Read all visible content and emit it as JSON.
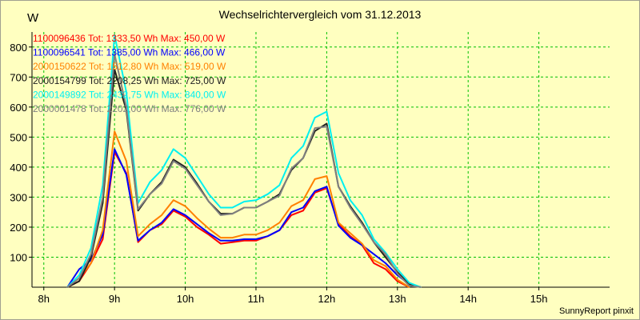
{
  "chart_data": {
    "type": "line",
    "title": "Wechselrichtervergleich vom 31.12.2013",
    "ylabel": "W",
    "credit": "SunnyReport pinxit",
    "xlim": [
      7.833,
      16
    ],
    "ylim": [
      0,
      850
    ],
    "grid": true,
    "legend_position": "top-left",
    "x_ticks": [
      8,
      9,
      10,
      11,
      12,
      13,
      14,
      15
    ],
    "x_tick_labels": [
      "8h",
      "9h",
      "10h",
      "11h",
      "12h",
      "13h",
      "14h",
      "15h"
    ],
    "y_ticks": [
      100,
      200,
      300,
      400,
      500,
      600,
      700,
      800
    ],
    "x": [
      8.0,
      8.167,
      8.333,
      8.5,
      8.667,
      8.833,
      9.0,
      9.167,
      9.333,
      9.5,
      9.667,
      9.833,
      10.0,
      10.167,
      10.333,
      10.5,
      10.667,
      10.833,
      11.0,
      11.167,
      11.333,
      11.5,
      11.667,
      11.833,
      12.0,
      12.167,
      12.333,
      12.5,
      12.667,
      12.833,
      13.0,
      13.167,
      13.333,
      13.5,
      13.667,
      13.833,
      14.0,
      14.167,
      14.333,
      14.5,
      14.667,
      14.833,
      15.0,
      15.167,
      15.333,
      15.5
    ],
    "series": [
      {
        "name": "1100096436 Tot: 1333,50 Wh Max: 450,00 W",
        "color": "#ff0000",
        "values": [
          null,
          null,
          0,
          20,
          80,
          160,
          450,
          380,
          150,
          190,
          210,
          255,
          235,
          200,
          175,
          145,
          150,
          155,
          155,
          170,
          190,
          240,
          255,
          315,
          330,
          210,
          170,
          140,
          80,
          60,
          20,
          0,
          null,
          null,
          null,
          null,
          null,
          null,
          null,
          null,
          null,
          null,
          null,
          null,
          null,
          null
        ]
      },
      {
        "name": "1100096541 Tot: 1385,00 Wh Max: 466,00 W",
        "color": "#0000ff",
        "values": [
          null,
          null,
          0,
          60,
          90,
          175,
          460,
          375,
          155,
          190,
          215,
          260,
          240,
          210,
          180,
          155,
          155,
          160,
          160,
          170,
          190,
          250,
          265,
          320,
          335,
          205,
          165,
          140,
          110,
          80,
          40,
          10,
          0,
          null,
          null,
          null,
          null,
          null,
          null,
          null,
          null,
          null,
          null,
          null,
          null,
          null
        ]
      },
      {
        "name": "2000150622 Tot: 1512,80 Wh Max: 519,00 W",
        "color": "#ff8000",
        "values": [
          null,
          null,
          0,
          30,
          80,
          190,
          519,
          420,
          170,
          210,
          240,
          290,
          270,
          230,
          195,
          165,
          165,
          175,
          175,
          190,
          215,
          270,
          290,
          360,
          370,
          215,
          180,
          145,
          90,
          70,
          25,
          0,
          null,
          null,
          null,
          null,
          null,
          null,
          null,
          null,
          null,
          null,
          null,
          null,
          null,
          null
        ]
      },
      {
        "name": "2000154799 Tot: 2208,25 Wh Max: 725,00 W",
        "color": "#202020",
        "values": [
          null,
          null,
          0,
          20,
          100,
          280,
          725,
          590,
          255,
          310,
          350,
          425,
          400,
          345,
          285,
          245,
          245,
          265,
          265,
          285,
          310,
          390,
          430,
          520,
          545,
          335,
          270,
          215,
          150,
          100,
          50,
          10,
          0,
          null,
          null,
          null,
          null,
          null,
          null,
          null,
          null,
          null,
          null,
          null,
          null,
          null
        ]
      },
      {
        "name": "2000149892 Tot: 2432,75 Wh Max: 840,00 W",
        "color": "#00f0f0",
        "values": [
          null,
          null,
          0,
          40,
          130,
          340,
          840,
          650,
          280,
          350,
          390,
          460,
          430,
          370,
          310,
          265,
          265,
          285,
          290,
          310,
          340,
          430,
          470,
          565,
          585,
          380,
          290,
          240,
          160,
          115,
          60,
          15,
          0,
          null,
          null,
          null,
          null,
          null,
          null,
          null,
          null,
          null,
          null,
          null,
          null,
          null
        ]
      },
      {
        "name": "2000001478 Tot: 2202,00 Wh Max: 776,00 W",
        "color": "#808080",
        "values": [
          null,
          null,
          0,
          30,
          110,
          300,
          776,
          600,
          260,
          310,
          345,
          420,
          395,
          340,
          285,
          240,
          245,
          265,
          265,
          285,
          305,
          395,
          430,
          530,
          535,
          335,
          265,
          210,
          150,
          110,
          45,
          5,
          0,
          null,
          null,
          null,
          null,
          null,
          null,
          null,
          null,
          null,
          null,
          null,
          null,
          null
        ]
      }
    ]
  }
}
